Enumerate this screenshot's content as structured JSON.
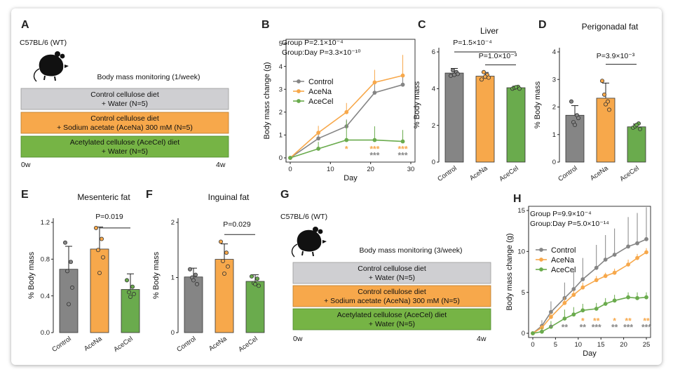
{
  "colors": {
    "control": "#858585",
    "acena": "#f7a84b",
    "acecel": "#6aab4d",
    "ctrl_box": "#cfcfd2",
    "acena_box": "#f7a84b",
    "acecel_box": "#76b445",
    "axis": "#222222"
  },
  "panels": {
    "A": {
      "label": "A",
      "strain": "C57BL/6 (WT)",
      "monitoring": "Body mass monitoring (1/week)",
      "boxes": [
        "Control cellulose diet",
        "+ Water (N=5)",
        "Control cellulose diet",
        "+ Sodium acetate (AceNa) 300 mM (N=5)",
        "Acetylated cellulose (AceCel) diet",
        "+ Water (N=5)"
      ],
      "start": "0w",
      "end": "4w",
      "icon": "mouse-icon"
    },
    "G": {
      "label": "G",
      "strain": "C57BL/6 (WT)",
      "monitoring": "Body mass monitoring (3/week)",
      "boxes": [
        "Control cellulose diet",
        "+ Water (N=5)",
        "Control cellulose diet",
        "+ Sodium acetate (AceNa) 300 mM (N=5)",
        "Acetylated cellulose (AceCel) diet",
        "+ Water (N=5)"
      ],
      "start": "0w",
      "end": "4w",
      "icon": "mouse-icon"
    },
    "B": {
      "label": "B",
      "stat1": "Group P=2.1×10⁻⁴",
      "stat2": "Group:Day P=3.3×10⁻¹⁰"
    },
    "C": {
      "label": "C",
      "stat1": "P=1.5×10⁻⁴",
      "stat2": "P=1.0×10⁻³"
    },
    "D": {
      "label": "D",
      "stat1": "P=3.9×10⁻³"
    },
    "E": {
      "label": "E",
      "stat1": "P=0.019"
    },
    "F": {
      "label": "F",
      "stat1": "P=0.029"
    },
    "H": {
      "label": "H",
      "stat1": "Group P=9.9×10⁻⁴",
      "stat2": "Group:Day P=5.0×10⁻¹⁴"
    }
  },
  "chart_data": [
    {
      "id": "B",
      "type": "line",
      "title": "",
      "xlabel": "Day",
      "ylabel": "Body mass change (g)",
      "xlim": [
        0,
        30
      ],
      "ylim": [
        0,
        5
      ],
      "xticks": [
        0,
        10,
        20,
        30
      ],
      "yticks": [
        0,
        1,
        2,
        3,
        4,
        5
      ],
      "legend": "top-left",
      "x": [
        0,
        7,
        14,
        21,
        28
      ],
      "series": [
        {
          "name": "Control",
          "color": "control",
          "values": [
            0,
            0.85,
            1.38,
            2.85,
            3.2
          ],
          "err": [
            0,
            0.22,
            0.3,
            0.4,
            0.35
          ]
        },
        {
          "name": "AceNa",
          "color": "acena",
          "values": [
            0,
            1.1,
            2.0,
            3.3,
            3.6
          ],
          "err": [
            0,
            0.3,
            0.4,
            0.55,
            0.9
          ]
        },
        {
          "name": "AceCel",
          "color": "acecel",
          "values": [
            0,
            0.4,
            0.78,
            0.78,
            0.72
          ],
          "err": [
            0,
            0.3,
            0.85,
            0.6,
            0.5
          ]
        }
      ],
      "annotations": [
        {
          "x": 14,
          "text": "*",
          "color": "acena",
          "row": 0
        },
        {
          "x": 21,
          "text": "***",
          "color": "acena",
          "row": 0
        },
        {
          "x": 21,
          "text": "***",
          "color": "control",
          "row": 1
        },
        {
          "x": 28,
          "text": "***",
          "color": "acena",
          "row": 0
        },
        {
          "x": 28,
          "text": "***",
          "color": "control",
          "row": 1
        }
      ]
    },
    {
      "id": "C",
      "type": "bar",
      "title": "Liver",
      "ylabel": "% Body mass",
      "ylim": [
        0,
        6
      ],
      "yticks": [
        0,
        2,
        4,
        6
      ],
      "categories": [
        "Control",
        "AceNa",
        "AceCel"
      ],
      "values": [
        4.85,
        4.68,
        4.05
      ],
      "err": [
        0.25,
        0.2,
        0.08
      ],
      "points": [
        [
          4.7,
          4.9,
          5.0,
          4.8,
          4.75
        ],
        [
          4.5,
          4.75,
          4.9,
          4.6,
          4.65
        ],
        [
          4.0,
          4.1,
          4.05,
          4.0,
          4.08
        ]
      ]
    },
    {
      "id": "D",
      "type": "bar",
      "title": "Perigonadal fat",
      "ylabel": "% Body mass",
      "ylim": [
        0,
        4
      ],
      "yticks": [
        0,
        1,
        2,
        3,
        4
      ],
      "categories": [
        "Control",
        "AceNa",
        "AceCel"
      ],
      "values": [
        1.7,
        2.32,
        1.28
      ],
      "err": [
        0.35,
        0.55,
        0.1
      ],
      "points": [
        [
          2.2,
          1.7,
          1.45,
          1.6,
          1.35
        ],
        [
          2.95,
          2.2,
          2.45,
          1.9,
          2.1
        ],
        [
          1.25,
          1.4,
          1.3,
          1.2,
          1.35
        ]
      ]
    },
    {
      "id": "E",
      "type": "bar",
      "title": "Mesenteric fat",
      "ylabel": "% Body mass",
      "ylim": [
        0,
        1.2
      ],
      "yticks": [
        0.0,
        0.4,
        0.8,
        1.2
      ],
      "categories": [
        "Control",
        "AceNa",
        "AceCel"
      ],
      "values": [
        0.69,
        0.91,
        0.47
      ],
      "err": [
        0.25,
        0.24,
        0.17
      ],
      "points": [
        [
          0.98,
          0.77,
          0.67,
          0.49,
          0.31
        ],
        [
          1.14,
          1.02,
          0.9,
          0.82,
          0.65
        ],
        [
          0.57,
          0.5,
          0.44,
          0.42,
          0.39
        ]
      ]
    },
    {
      "id": "F",
      "type": "bar",
      "title": "Inguinal fat",
      "ylabel": "% Body mass",
      "ylim": [
        0,
        2
      ],
      "yticks": [
        0,
        1,
        2
      ],
      "categories": [
        "Control",
        "AceNa",
        "AceCel"
      ],
      "values": [
        1.01,
        1.33,
        0.93
      ],
      "err": [
        0.16,
        0.28,
        0.12
      ],
      "points": [
        [
          1.15,
          1.05,
          1.0,
          0.88,
          0.95
        ],
        [
          1.65,
          1.45,
          1.3,
          1.2,
          1.07
        ],
        [
          1.02,
          0.98,
          0.9,
          0.85,
          0.88
        ]
      ]
    },
    {
      "id": "H",
      "type": "line",
      "title": "",
      "xlabel": "Day",
      "ylabel": "Body mass change (g)",
      "xlim": [
        0,
        25
      ],
      "ylim": [
        0,
        15
      ],
      "xticks": [
        0,
        5,
        10,
        15,
        20,
        25
      ],
      "yticks": [
        0,
        5,
        10,
        15
      ],
      "legend": "top-left",
      "x": [
        0,
        2,
        4,
        7,
        9,
        11,
        14,
        16,
        18,
        21,
        23,
        25
      ],
      "series": [
        {
          "name": "Control",
          "color": "control",
          "values": [
            0,
            0.9,
            2.6,
            4.3,
            5.4,
            6.6,
            8.0,
            9.0,
            9.6,
            10.6,
            11.0,
            11.5
          ],
          "err": [
            0,
            0.7,
            1.3,
            1.9,
            2.2,
            2.6,
            2.8,
            3.0,
            3.2,
            3.6,
            3.7,
            3.9
          ]
        },
        {
          "name": "AceNa",
          "color": "acena",
          "values": [
            0,
            0.7,
            2.0,
            3.7,
            4.7,
            5.6,
            6.5,
            7.0,
            7.4,
            8.4,
            9.2,
            9.9
          ],
          "err": [
            0,
            0.3,
            0.5,
            0.7,
            0.5,
            0.6,
            0.5,
            0.4,
            0.5,
            0.6,
            0.5,
            0.5
          ]
        },
        {
          "name": "AceCel",
          "color": "acecel",
          "values": [
            0,
            0.2,
            0.8,
            1.8,
            2.3,
            2.8,
            3.0,
            3.6,
            4.0,
            4.4,
            4.3,
            4.4
          ],
          "err": [
            0,
            0.5,
            0.7,
            1.1,
            0.9,
            0.8,
            0.7,
            0.7,
            0.7,
            0.6,
            0.7,
            0.6
          ]
        }
      ],
      "annotations": [
        {
          "x": 4,
          "text": "*",
          "color": "control",
          "row": 1
        },
        {
          "x": 7,
          "text": "**",
          "color": "control",
          "row": 1
        },
        {
          "x": 11,
          "text": "*",
          "color": "acena",
          "row": 0
        },
        {
          "x": 11,
          "text": "**",
          "color": "control",
          "row": 1
        },
        {
          "x": 14,
          "text": "**",
          "color": "acena",
          "row": 0
        },
        {
          "x": 14,
          "text": "***",
          "color": "control",
          "row": 1
        },
        {
          "x": 18,
          "text": "*",
          "color": "acena",
          "row": 0
        },
        {
          "x": 18,
          "text": "**",
          "color": "control",
          "row": 1
        },
        {
          "x": 21,
          "text": "**",
          "color": "acena",
          "row": 0
        },
        {
          "x": 21,
          "text": "***",
          "color": "control",
          "row": 1
        },
        {
          "x": 25,
          "text": "**",
          "color": "acena",
          "row": 0
        },
        {
          "x": 25,
          "text": "***",
          "color": "control",
          "row": 1
        }
      ]
    }
  ]
}
